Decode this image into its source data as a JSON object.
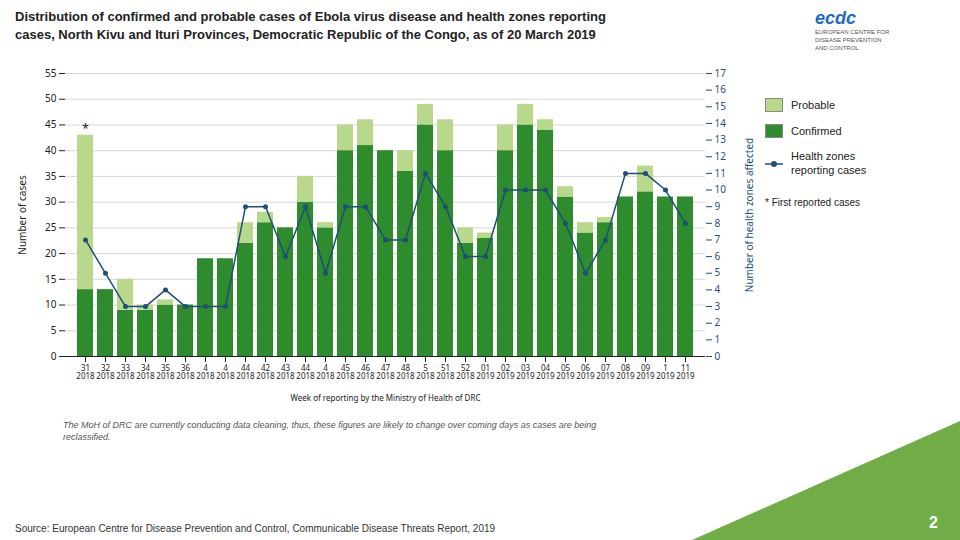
{
  "chart_data": {
    "type": "bar",
    "stacked": true,
    "title": "Distribution of confirmed and probable cases of Ebola virus disease and health zones reporting\ncases, North Kivu and Ituri Provinces, Democratic Republic of the Congo, as of 20 March 2019",
    "x_label": "Week of reporting by the Ministry of Health of DRC",
    "y_label": "Number of cases",
    "y2_label": "Number of health zones affected",
    "categories": [
      "31\n2018",
      "32\n2018",
      "33\n2018",
      "34\n2018",
      "35\n2018",
      "36\n2018",
      "4\n2018",
      "4\n2018",
      "44\n2018",
      "42\n2018",
      "43\n2018",
      "44\n2018",
      "4\n2018",
      "45\n2018",
      "46\n2018",
      "47\n2018",
      "48\n2018",
      "5\n2018",
      "51\n2018",
      "52\n2018",
      "01\n2019",
      "02\n2019",
      "03\n2019",
      "04\n2019",
      "05\n2019",
      "06\n2019",
      "07\n2019",
      "08\n2019",
      "09\n2019",
      "1\n2019",
      "11\n2019"
    ],
    "series": [
      {
        "name": "Confirmed",
        "color": "#2e8b2e",
        "values": [
          13,
          13,
          9,
          9,
          10,
          10,
          19,
          19,
          22,
          26,
          25,
          30,
          25,
          40,
          41,
          40,
          36,
          45,
          40,
          22,
          23,
          40,
          45,
          44,
          31,
          24,
          26,
          31,
          32,
          31,
          31
        ]
      },
      {
        "name": "Probable",
        "color": "#b8d98b",
        "values": [
          30,
          0,
          6,
          1,
          1,
          0,
          0,
          0,
          4,
          2,
          0,
          5,
          1,
          5,
          5,
          0,
          4,
          4,
          6,
          3,
          1,
          5,
          4,
          2,
          2,
          2,
          1,
          0,
          5,
          0,
          0
        ]
      },
      {
        "name": "Health zones\nreporting cases",
        "type": "line",
        "marker": "circle",
        "axis": "y2",
        "color": "#1f4e79",
        "values": [
          7,
          5,
          3,
          3,
          4,
          3,
          3,
          3,
          9,
          9,
          6,
          9,
          5,
          9,
          9,
          7,
          7,
          11,
          9,
          6,
          6,
          10,
          10,
          10,
          8,
          5,
          7,
          11,
          11,
          10,
          8
        ]
      }
    ],
    "ylim": [
      0,
      55
    ],
    "yticks": [
      0,
      5,
      10,
      15,
      20,
      25,
      30,
      35,
      40,
      45,
      50,
      55
    ],
    "y2lim": [
      0,
      17
    ],
    "y2ticks": [
      0,
      1,
      2,
      3,
      4,
      5,
      6,
      7,
      8,
      9,
      10,
      11,
      12,
      13,
      14,
      15,
      16,
      17
    ],
    "grid": true,
    "legend": "right",
    "annotations": [
      {
        "text": "*",
        "x": "31\n2018",
        "y": 43
      }
    ],
    "note": "* First reported cases",
    "footnote": "The MoH of DRC are currently conducting data cleaning, thus, these figures are likely to change over coming days as cases are being\nreclassified.",
    "source": "Source: European Centre for Disease Prevention and Control, Communicable Disease Threats Report, 2019",
    "page_number": "2",
    "logo_text": [
      "ecdc",
      "EUROPEAN CENTRE FOR\nDISEASE PREVENTION\nAND CONTROL"
    ]
  }
}
